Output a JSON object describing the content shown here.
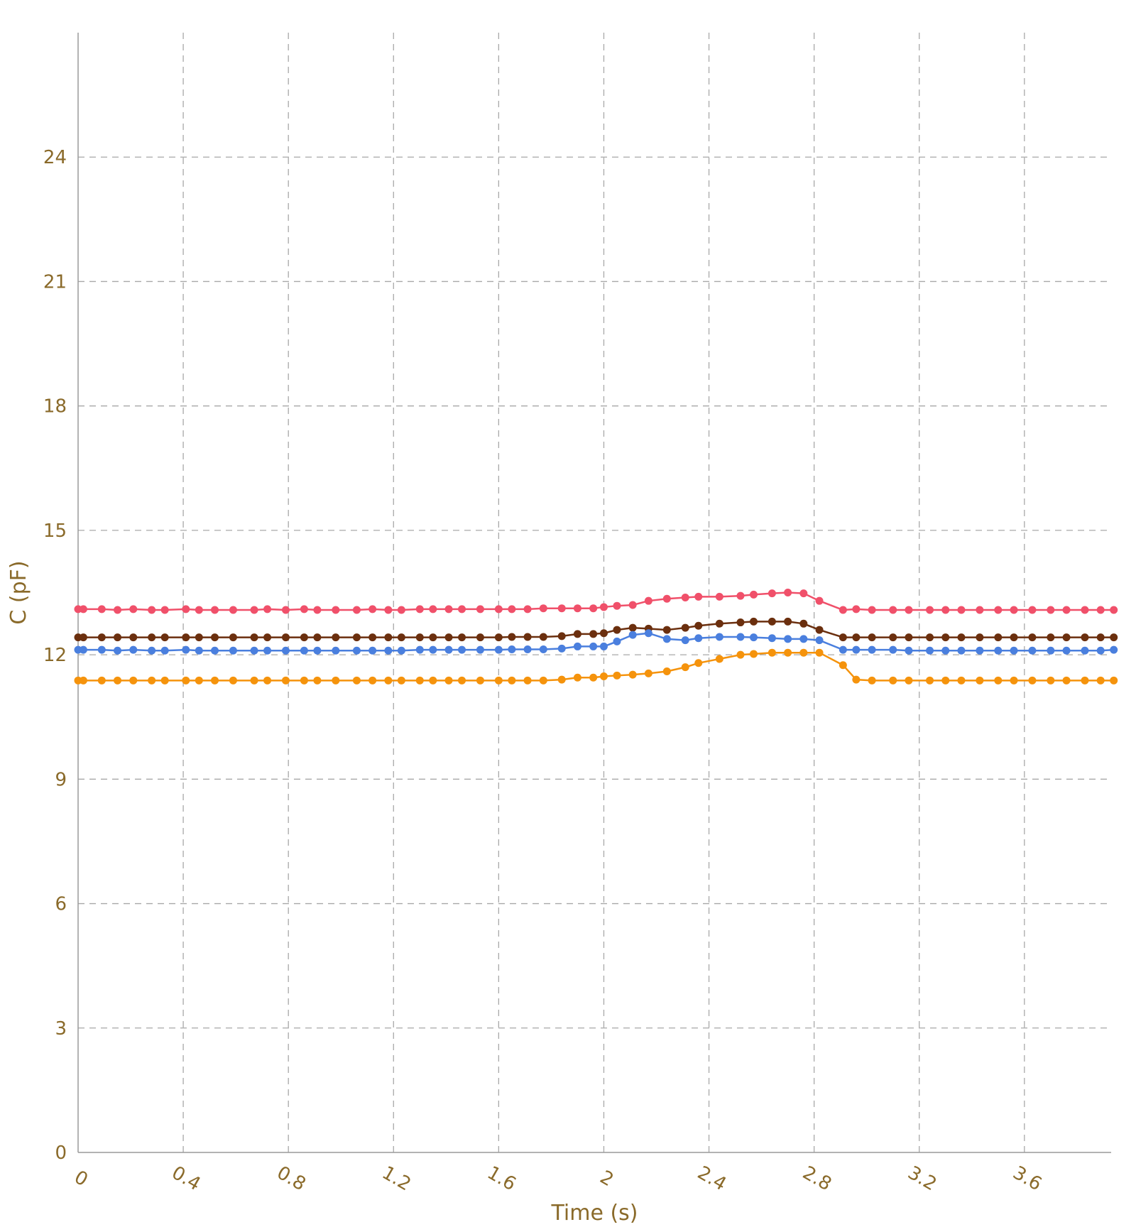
{
  "chart_data": {
    "type": "line",
    "xlabel": "Time (s)",
    "ylabel": "C (pF)",
    "xlim": [
      0,
      3.93
    ],
    "ylim": [
      0,
      27
    ],
    "x_ticks": [
      "0",
      "0.4",
      "0.8",
      "1.2",
      "1.6",
      "2",
      "2.4",
      "2.8",
      "3.2",
      "3.6"
    ],
    "y_ticks": [
      "0",
      "3",
      "6",
      "9",
      "12",
      "15",
      "18",
      "21",
      "24"
    ],
    "grid": true,
    "markers": true,
    "x": [
      0.0,
      0.02,
      0.09,
      0.15,
      0.21,
      0.28,
      0.33,
      0.41,
      0.46,
      0.52,
      0.59,
      0.67,
      0.72,
      0.79,
      0.86,
      0.91,
      0.98,
      1.06,
      1.12,
      1.18,
      1.23,
      1.3,
      1.35,
      1.41,
      1.46,
      1.53,
      1.6,
      1.65,
      1.71,
      1.77,
      1.84,
      1.9,
      1.96,
      2.0,
      2.05,
      2.11,
      2.17,
      2.24,
      2.31,
      2.36,
      2.44,
      2.52,
      2.57,
      2.64,
      2.7,
      2.76,
      2.82,
      2.91,
      2.96,
      3.02,
      3.1,
      3.16,
      3.24,
      3.3,
      3.36,
      3.43,
      3.5,
      3.56,
      3.63,
      3.7,
      3.76,
      3.83,
      3.89,
      3.94
    ],
    "series": [
      {
        "color": "#f0506a",
        "values": [
          13.1,
          13.1,
          13.1,
          13.08,
          13.1,
          13.08,
          13.08,
          13.1,
          13.08,
          13.08,
          13.08,
          13.08,
          13.1,
          13.08,
          13.1,
          13.08,
          13.08,
          13.08,
          13.1,
          13.08,
          13.08,
          13.1,
          13.1,
          13.1,
          13.1,
          13.1,
          13.1,
          13.1,
          13.1,
          13.12,
          13.12,
          13.12,
          13.12,
          13.15,
          13.18,
          13.2,
          13.3,
          13.35,
          13.38,
          13.4,
          13.4,
          13.42,
          13.45,
          13.48,
          13.5,
          13.48,
          13.3,
          13.08,
          13.1,
          13.08,
          13.08,
          13.08,
          13.08,
          13.08,
          13.08,
          13.08,
          13.08,
          13.08,
          13.08,
          13.08,
          13.08,
          13.08,
          13.08,
          13.08
        ]
      },
      {
        "color": "#6b2f0e",
        "values": [
          12.42,
          12.42,
          12.42,
          12.42,
          12.42,
          12.42,
          12.42,
          12.42,
          12.42,
          12.42,
          12.42,
          12.42,
          12.42,
          12.42,
          12.42,
          12.42,
          12.42,
          12.42,
          12.42,
          12.42,
          12.42,
          12.42,
          12.42,
          12.42,
          12.42,
          12.42,
          12.42,
          12.43,
          12.43,
          12.43,
          12.45,
          12.5,
          12.5,
          12.52,
          12.6,
          12.65,
          12.63,
          12.6,
          12.65,
          12.7,
          12.75,
          12.78,
          12.8,
          12.8,
          12.8,
          12.75,
          12.6,
          12.42,
          12.42,
          12.42,
          12.42,
          12.42,
          12.42,
          12.42,
          12.42,
          12.42,
          12.42,
          12.42,
          12.42,
          12.42,
          12.42,
          12.42,
          12.42,
          12.42
        ]
      },
      {
        "color": "#4a7fde",
        "values": [
          12.12,
          12.12,
          12.12,
          12.1,
          12.12,
          12.1,
          12.1,
          12.12,
          12.1,
          12.1,
          12.1,
          12.1,
          12.1,
          12.1,
          12.1,
          12.1,
          12.1,
          12.1,
          12.1,
          12.1,
          12.1,
          12.12,
          12.12,
          12.12,
          12.12,
          12.12,
          12.12,
          12.13,
          12.13,
          12.13,
          12.15,
          12.2,
          12.2,
          12.2,
          12.32,
          12.48,
          12.52,
          12.38,
          12.35,
          12.4,
          12.43,
          12.43,
          12.42,
          12.4,
          12.38,
          12.38,
          12.35,
          12.12,
          12.12,
          12.12,
          12.12,
          12.1,
          12.1,
          12.1,
          12.1,
          12.1,
          12.1,
          12.1,
          12.1,
          12.1,
          12.1,
          12.1,
          12.1,
          12.12
        ]
      },
      {
        "color": "#f5930c",
        "values": [
          11.38,
          11.38,
          11.38,
          11.38,
          11.38,
          11.38,
          11.38,
          11.38,
          11.38,
          11.38,
          11.38,
          11.38,
          11.38,
          11.38,
          11.38,
          11.38,
          11.38,
          11.38,
          11.38,
          11.38,
          11.38,
          11.38,
          11.38,
          11.38,
          11.38,
          11.38,
          11.38,
          11.38,
          11.38,
          11.38,
          11.4,
          11.45,
          11.45,
          11.48,
          11.5,
          11.52,
          11.55,
          11.6,
          11.7,
          11.8,
          11.9,
          12.0,
          12.02,
          12.05,
          12.05,
          12.05,
          12.05,
          11.75,
          11.4,
          11.38,
          11.38,
          11.38,
          11.38,
          11.38,
          11.38,
          11.38,
          11.38,
          11.38,
          11.38,
          11.38,
          11.38,
          11.38,
          11.38,
          11.38
        ]
      }
    ]
  }
}
